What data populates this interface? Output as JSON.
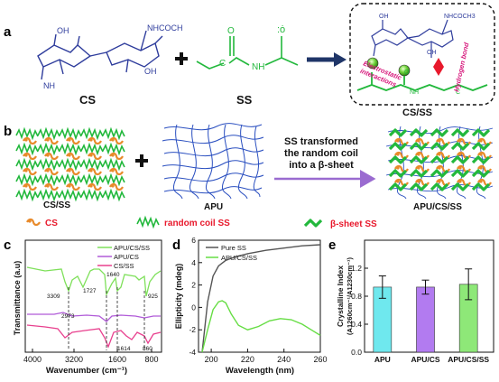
{
  "panels": {
    "a": "a",
    "b": "b",
    "c": "c",
    "d": "d",
    "e": "e"
  },
  "panel_a": {
    "cs_label": "CS",
    "ss_label": "SS",
    "cs_ss_label": "CS/SS",
    "oh_left": "OH",
    "oh_right": "OH",
    "nhcoch3": "NHCOCH",
    "nh2": "NH",
    "c_left": "C",
    "c_carbonyl": "C",
    "o_carbonyl": "O",
    "nh_ss": "NH",
    "c_right": "C",
    "electrostatic": "Electrostatic interactions",
    "hydrogen_bond": "Hydrogen bond",
    "inset_nhcoch3": "NHCOCH3",
    "inset_oh": "OH",
    "inset_nh": "NH",
    "inset_o": "O",
    "inset_c": "C"
  },
  "panel_b": {
    "cs_ss": "CS/SS",
    "apu": "APU",
    "apu_cs_ss": "APU/CS/SS",
    "arrow_text": [
      "SS transformed",
      "the random coil",
      "into a β-sheet"
    ],
    "legend_cs": "CS",
    "legend_random": "random coil  SS",
    "legend_beta": "β-sheet SS"
  },
  "colors": {
    "green": "#22b83c",
    "orange": "#e88a2a",
    "blue_struct": "#2e3c9c",
    "red": "#e8192c",
    "magenta": "#d6157a",
    "purple_arrow": "#9a6bd0",
    "navy_arrow": "#1f3568",
    "bar_cyan": "#6fe8ee",
    "bar_purple": "#b27bf0",
    "bar_green": "#8ee878"
  },
  "chart_data": [
    {
      "panel": "c",
      "type": "line",
      "xlabel": "Wavenumber (cm⁻¹)",
      "ylabel": "Transmittance (a.u)",
      "x_ticks": [
        4000,
        3200,
        1600,
        800
      ],
      "series": [
        {
          "name": "APU/CS/SS",
          "color": "#7ee05a"
        },
        {
          "name": "APU/CS",
          "color": "#b05ad8"
        },
        {
          "name": "CS/SS",
          "color": "#e8408e"
        }
      ],
      "annotations": [
        "3309",
        "2973",
        "1727",
        "1640",
        "925",
        "1614",
        "860"
      ]
    },
    {
      "panel": "d",
      "type": "line",
      "xlabel": "Wavelength (nm)",
      "ylabel": "Ellipticity (mdeg)",
      "x_ticks": [
        200,
        220,
        240,
        260
      ],
      "y_ticks": [
        -4,
        -2,
        0,
        2,
        4,
        6
      ],
      "xlim": [
        193,
        260
      ],
      "ylim": [
        -4,
        6
      ],
      "series": [
        {
          "name": "Pure SS",
          "color": "#555555",
          "x": [
            195,
            198,
            201,
            204,
            208,
            213,
            220,
            230,
            240,
            250,
            260
          ],
          "y": [
            -4.2,
            0.5,
            2.8,
            3.7,
            4.2,
            4.5,
            4.8,
            5.1,
            5.3,
            5.5,
            5.6
          ]
        },
        {
          "name": "APU/CS/SS",
          "color": "#66dd44",
          "x": [
            195,
            198,
            201,
            204,
            206,
            208,
            211,
            215,
            220,
            226,
            232,
            238,
            244,
            250,
            255,
            260
          ],
          "y": [
            -4.2,
            -2.0,
            -0.2,
            0.5,
            0.6,
            0.4,
            -0.6,
            -1.6,
            -2.0,
            -1.7,
            -1.2,
            -1.0,
            -1.1,
            -1.5,
            -2.0,
            -2.5
          ]
        }
      ]
    },
    {
      "panel": "e",
      "type": "bar",
      "ylabel_line1": "Crystalline Index",
      "ylabel_line2": "(A1260cm⁻¹/A1230cm⁻¹)",
      "categories": [
        "APU",
        "APU/CS",
        "APU/CS/SS"
      ],
      "values": [
        0.93,
        0.93,
        0.97
      ],
      "errors": [
        0.16,
        0.1,
        0.22
      ],
      "y_ticks": [
        0.0,
        0.4,
        0.8,
        1.2
      ],
      "ylim": [
        0,
        1.6
      ]
    }
  ]
}
